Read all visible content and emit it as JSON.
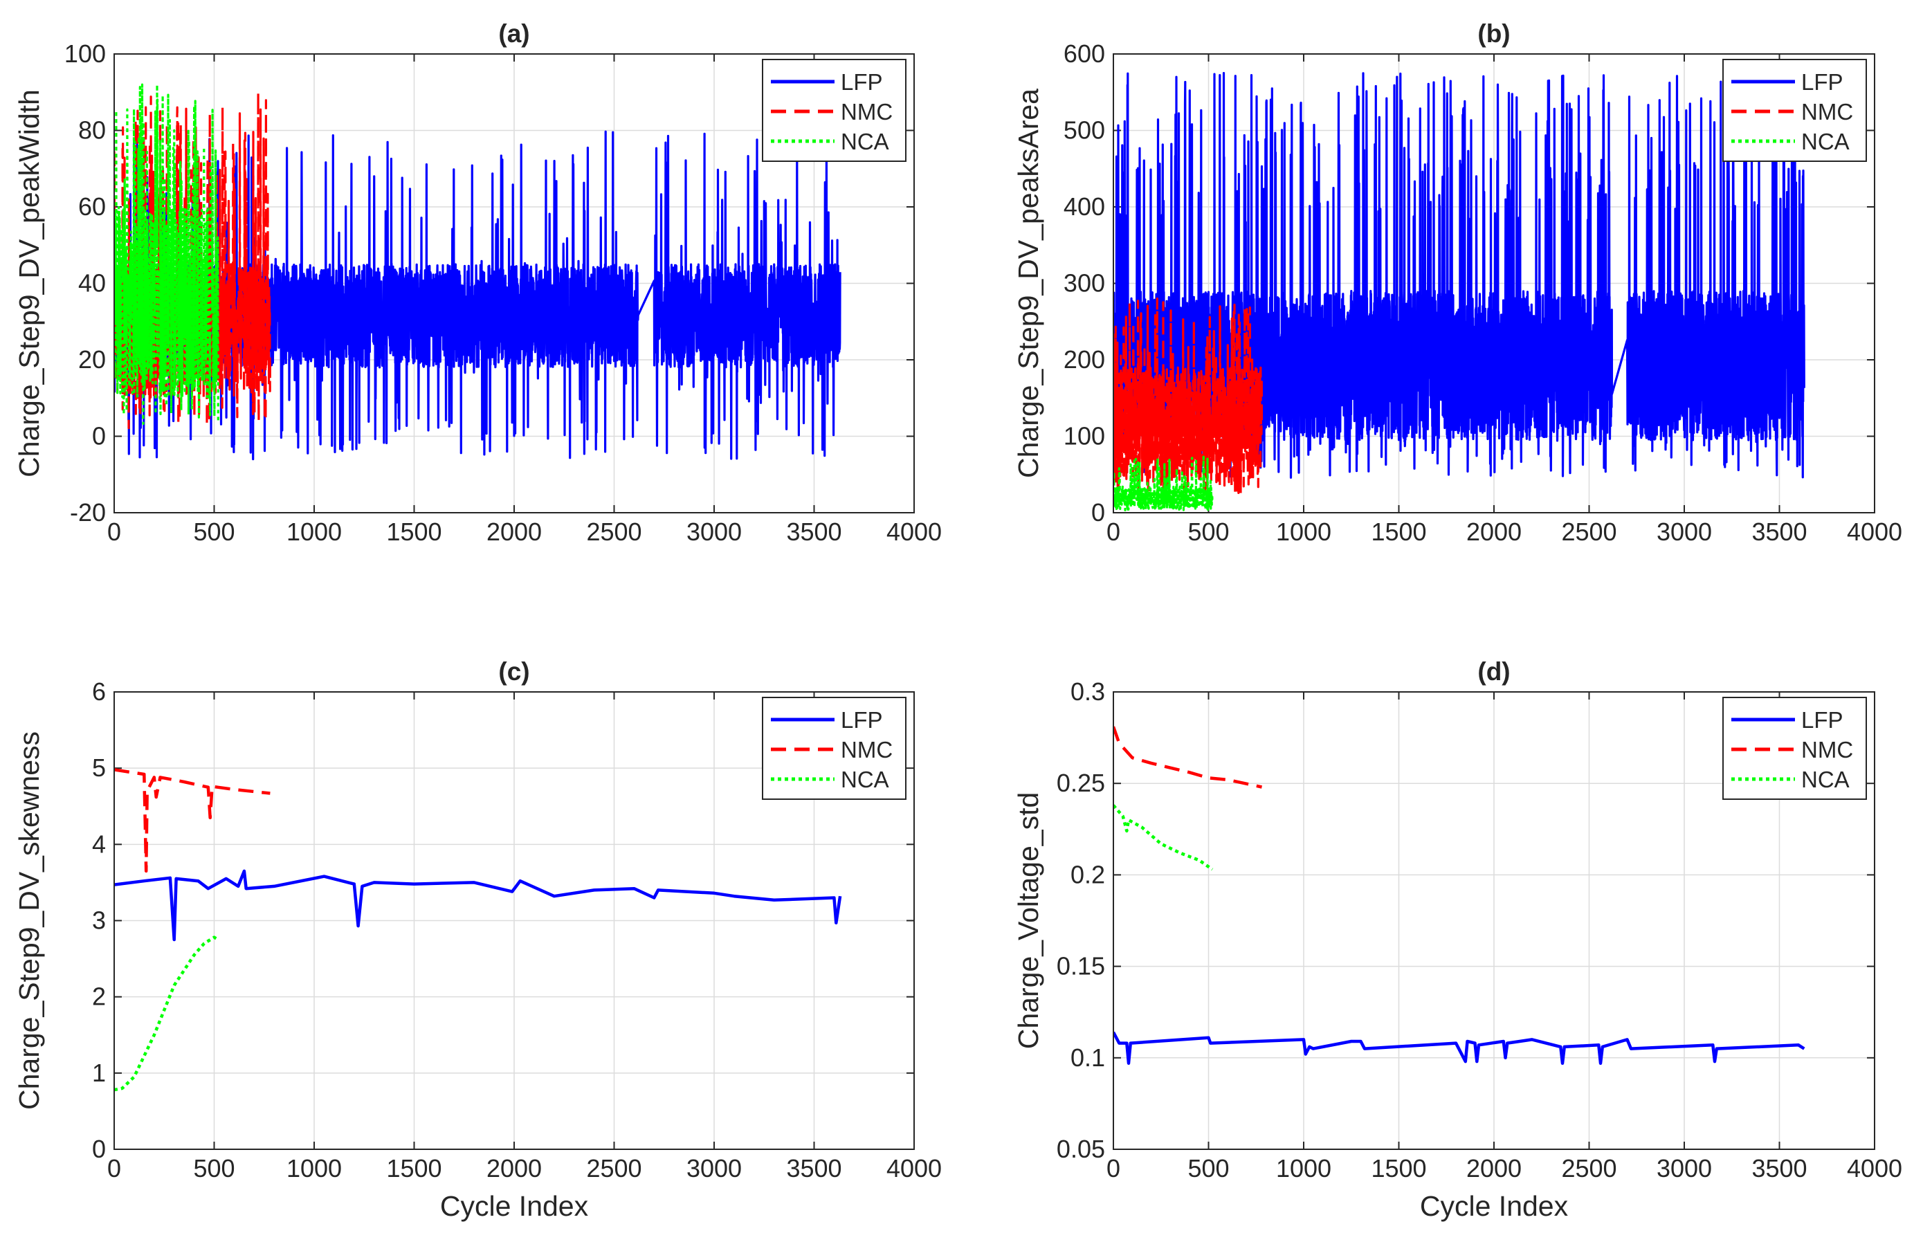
{
  "chart_data": [
    {
      "id": "a",
      "type": "line",
      "title": "(a)",
      "xlabel": "",
      "ylabel": "Charge_Step9_DV_peakWidth",
      "xlim": [
        0,
        4000
      ],
      "ylim": [
        -20,
        100
      ],
      "xticks": [
        "0",
        "500",
        "1000",
        "1500",
        "2000",
        "2500",
        "3000",
        "3500",
        "4000"
      ],
      "yticks": [
        "-20",
        "0",
        "20",
        "40",
        "60",
        "80",
        "100"
      ],
      "grid": true,
      "legend": {
        "position": "top-right",
        "entries": [
          "LFP",
          "NMC",
          "NCA"
        ]
      },
      "series": [
        {
          "name": "LFP",
          "style": "solid",
          "color": "#0000ff",
          "kind": "noise",
          "x_range": [
            0,
            3630
          ],
          "gap": [
            2620,
            2700
          ],
          "base": [
            18,
            45
          ],
          "spikes": [
            8,
            80
          ],
          "dips": [
            -6,
            5
          ],
          "points": [
            [
              0,
              30
            ],
            [
              500,
              35
            ],
            [
              1000,
              30
            ],
            [
              1500,
              28
            ],
            [
              2000,
              30
            ],
            [
              2500,
              28
            ],
            [
              2700,
              30
            ],
            [
              3200,
              28
            ],
            [
              3630,
              30
            ]
          ]
        },
        {
          "name": "NMC",
          "style": "dashed",
          "color": "#ff0000",
          "kind": "noise",
          "x_range": [
            0,
            780
          ],
          "base": [
            10,
            45
          ],
          "spikes": [
            60,
            90
          ],
          "dips": [
            2,
            8
          ],
          "points": [
            [
              0,
              30
            ],
            [
              300,
              28
            ],
            [
              500,
              30
            ],
            [
              720,
              90
            ],
            [
              780,
              25
            ]
          ]
        },
        {
          "name": "NCA",
          "style": "dotted",
          "color": "#00ff00",
          "kind": "noise",
          "x_range": [
            0,
            520
          ],
          "base": [
            10,
            60
          ],
          "spikes": [
            65,
            92
          ],
          "dips": [
            3,
            8
          ],
          "points": [
            [
              0,
              30
            ],
            [
              140,
              92
            ],
            [
              300,
              80
            ],
            [
              520,
              40
            ]
          ]
        }
      ]
    },
    {
      "id": "b",
      "type": "line",
      "title": "(b)",
      "xlabel": "",
      "ylabel": "Charge_Step9_DV_peaksArea",
      "xlim": [
        0,
        4000
      ],
      "ylim": [
        0,
        600
      ],
      "xticks": [
        "0",
        "500",
        "1000",
        "1500",
        "2000",
        "2500",
        "3000",
        "3500",
        "4000"
      ],
      "yticks": [
        "0",
        "100",
        "200",
        "300",
        "400",
        "500",
        "600"
      ],
      "grid": true,
      "legend": {
        "position": "top-right",
        "entries": [
          "LFP",
          "NMC",
          "NCA"
        ]
      },
      "series": [
        {
          "name": "LFP",
          "style": "solid",
          "color": "#0000ff",
          "kind": "noise",
          "x_range": [
            0,
            3630
          ],
          "gap": [
            2620,
            2700
          ],
          "base": [
            95,
            290
          ],
          "spikes": [
            380,
            575
          ],
          "dips": [
            45,
            95
          ],
          "points": [
            [
              0,
              200
            ],
            [
              580,
              575
            ],
            [
              1490,
              570
            ],
            [
              2020,
              560
            ],
            [
              3030,
              535
            ],
            [
              3630,
              200
            ]
          ]
        },
        {
          "name": "NMC",
          "style": "dashed",
          "color": "#ff0000",
          "kind": "noise",
          "x_range": [
            0,
            780
          ],
          "base": [
            40,
            190
          ],
          "spikes": [
            200,
            280
          ],
          "dips": [
            20,
            40
          ],
          "points": [
            [
              0,
              120
            ],
            [
              230,
              280
            ],
            [
              500,
              120
            ],
            [
              780,
              80
            ]
          ]
        },
        {
          "name": "NCA",
          "style": "dotted",
          "color": "#00ff00",
          "kind": "noise",
          "x_range": [
            0,
            520
          ],
          "base": [
            5,
            35
          ],
          "spikes": [
            40,
            75
          ],
          "dips": [
            3,
            6
          ],
          "points": [
            [
              0,
              15
            ],
            [
              300,
              20
            ],
            [
              520,
              25
            ]
          ]
        }
      ]
    },
    {
      "id": "c",
      "type": "line",
      "title": "(c)",
      "xlabel": "Cycle Index",
      "ylabel": "Charge_Step9_DV_skewness",
      "xlim": [
        0,
        4000
      ],
      "ylim": [
        0,
        6
      ],
      "xticks": [
        "0",
        "500",
        "1000",
        "1500",
        "2000",
        "2500",
        "3000",
        "3500",
        "4000"
      ],
      "yticks": [
        "0",
        "1",
        "2",
        "3",
        "4",
        "5",
        "6"
      ],
      "grid": true,
      "legend": {
        "position": "top-right",
        "entries": [
          "LFP",
          "NMC",
          "NCA"
        ]
      },
      "series": [
        {
          "name": "LFP",
          "style": "solid",
          "color": "#0000ff",
          "kind": "line",
          "points": [
            [
              0,
              3.47
            ],
            [
              150,
              3.52
            ],
            [
              280,
              3.56
            ],
            [
              300,
              2.75
            ],
            [
              310,
              3.55
            ],
            [
              420,
              3.52
            ],
            [
              470,
              3.42
            ],
            [
              560,
              3.55
            ],
            [
              620,
              3.45
            ],
            [
              650,
              3.65
            ],
            [
              660,
              3.42
            ],
            [
              800,
              3.45
            ],
            [
              1050,
              3.58
            ],
            [
              1200,
              3.48
            ],
            [
              1220,
              2.93
            ],
            [
              1240,
              3.45
            ],
            [
              1300,
              3.5
            ],
            [
              1500,
              3.48
            ],
            [
              1800,
              3.5
            ],
            [
              1990,
              3.38
            ],
            [
              2030,
              3.52
            ],
            [
              2200,
              3.32
            ],
            [
              2400,
              3.4
            ],
            [
              2600,
              3.42
            ],
            [
              2700,
              3.3
            ],
            [
              2720,
              3.4
            ],
            [
              3000,
              3.36
            ],
            [
              3100,
              3.32
            ],
            [
              3300,
              3.27
            ],
            [
              3600,
              3.3
            ],
            [
              3610,
              2.97
            ],
            [
              3630,
              3.32
            ]
          ]
        },
        {
          "name": "NMC",
          "style": "dashed",
          "color": "#ff0000",
          "kind": "line",
          "points": [
            [
              0,
              4.98
            ],
            [
              150,
              4.92
            ],
            [
              160,
              3.65
            ],
            [
              165,
              4.7
            ],
            [
              200,
              4.88
            ],
            [
              210,
              4.62
            ],
            [
              230,
              4.88
            ],
            [
              350,
              4.82
            ],
            [
              470,
              4.75
            ],
            [
              480,
              4.35
            ],
            [
              490,
              4.76
            ],
            [
              600,
              4.72
            ],
            [
              780,
              4.67
            ]
          ]
        },
        {
          "name": "NCA",
          "style": "dotted",
          "color": "#00ff00",
          "kind": "line",
          "points": [
            [
              0,
              0.78
            ],
            [
              40,
              0.8
            ],
            [
              100,
              0.95
            ],
            [
              200,
              1.5
            ],
            [
              300,
              2.15
            ],
            [
              400,
              2.55
            ],
            [
              450,
              2.7
            ],
            [
              500,
              2.78
            ],
            [
              520,
              2.75
            ]
          ]
        }
      ]
    },
    {
      "id": "d",
      "type": "line",
      "title": "(d)",
      "xlabel": "Cycle Index",
      "ylabel": "Charge_Voltage_std",
      "xlim": [
        0,
        4000
      ],
      "ylim": [
        0.05,
        0.3
      ],
      "xticks": [
        "0",
        "500",
        "1000",
        "1500",
        "2000",
        "2500",
        "3000",
        "3500",
        "4000"
      ],
      "yticks": [
        "0.05",
        "0.1",
        "0.15",
        "0.2",
        "0.25",
        "0.3"
      ],
      "grid": true,
      "legend": {
        "position": "top-right",
        "entries": [
          "LFP",
          "NMC",
          "NCA"
        ]
      },
      "series": [
        {
          "name": "LFP",
          "style": "solid",
          "color": "#0000ff",
          "kind": "line",
          "points": [
            [
              0,
              0.114
            ],
            [
              30,
              0.108
            ],
            [
              70,
              0.108
            ],
            [
              80,
              0.097
            ],
            [
              90,
              0.108
            ],
            [
              500,
              0.111
            ],
            [
              510,
              0.108
            ],
            [
              1000,
              0.11
            ],
            [
              1010,
              0.102
            ],
            [
              1030,
              0.106
            ],
            [
              1050,
              0.105
            ],
            [
              1250,
              0.109
            ],
            [
              1300,
              0.109
            ],
            [
              1320,
              0.105
            ],
            [
              1800,
              0.108
            ],
            [
              1850,
              0.098
            ],
            [
              1860,
              0.109
            ],
            [
              1900,
              0.108
            ],
            [
              1910,
              0.098
            ],
            [
              1920,
              0.107
            ],
            [
              2050,
              0.109
            ],
            [
              2060,
              0.1
            ],
            [
              2070,
              0.108
            ],
            [
              2200,
              0.11
            ],
            [
              2350,
              0.106
            ],
            [
              2360,
              0.097
            ],
            [
              2370,
              0.106
            ],
            [
              2550,
              0.107
            ],
            [
              2560,
              0.097
            ],
            [
              2570,
              0.106
            ],
            [
              2700,
              0.11
            ],
            [
              2720,
              0.105
            ],
            [
              3150,
              0.107
            ],
            [
              3160,
              0.098
            ],
            [
              3170,
              0.105
            ],
            [
              3600,
              0.107
            ],
            [
              3630,
              0.105
            ]
          ]
        },
        {
          "name": "NMC",
          "style": "dashed",
          "color": "#ff0000",
          "kind": "line",
          "points": [
            [
              0,
              0.281
            ],
            [
              30,
              0.272
            ],
            [
              100,
              0.264
            ],
            [
              200,
              0.261
            ],
            [
              400,
              0.256
            ],
            [
              500,
              0.253
            ],
            [
              600,
              0.252
            ],
            [
              780,
              0.248
            ]
          ]
        },
        {
          "name": "NCA",
          "style": "dotted",
          "color": "#00ff00",
          "kind": "line",
          "points": [
            [
              0,
              0.238
            ],
            [
              50,
              0.232
            ],
            [
              70,
              0.224
            ],
            [
              80,
              0.23
            ],
            [
              150,
              0.226
            ],
            [
              250,
              0.217
            ],
            [
              350,
              0.212
            ],
            [
              450,
              0.208
            ],
            [
              520,
              0.203
            ]
          ]
        }
      ]
    }
  ]
}
